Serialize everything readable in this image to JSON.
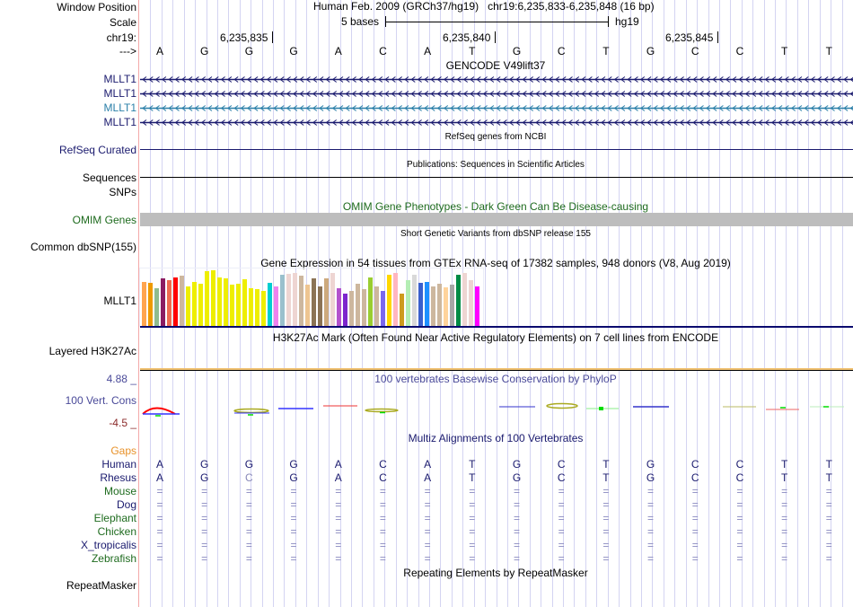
{
  "header": {
    "window_position_label": "Window Position",
    "scale_label": "Scale",
    "chrom_label": "chr19:",
    "strand_label": "--->",
    "assembly_text": "Human Feb. 2009 (GRCh37/hg19)   chr19:6,235,833-6,235,848 (16 bp)",
    "scale_text": "5 bases",
    "scale_db": "hg19",
    "positions": [
      "6,235,835",
      "6,235,840",
      "6,235,845"
    ],
    "sequence": [
      "A",
      "G",
      "G",
      "G",
      "A",
      "C",
      "A",
      "T",
      "G",
      "C",
      "T",
      "G",
      "C",
      "C",
      "T",
      "T"
    ]
  },
  "tracks": {
    "gencode": {
      "title": "GENCODE V49lift37",
      "rows": [
        {
          "label": "MLLT1",
          "color": "#1a1a6e"
        },
        {
          "label": "MLLT1",
          "color": "#1a1a6e"
        },
        {
          "label": "MLLT1",
          "color": "#2a7fa8"
        },
        {
          "label": "MLLT1",
          "color": "#1a1a6e"
        }
      ]
    },
    "refseq": {
      "label": "RefSeq Curated",
      "title": "RefSeq genes from NCBI"
    },
    "publications": {
      "label": "Sequences",
      "title": "Publications: Sequences in Scientific Articles"
    },
    "snps": {
      "label": "SNPs"
    },
    "omim": {
      "label": "OMIM Genes",
      "title": "OMIM Gene Phenotypes - Dark Green Can Be Disease-causing"
    },
    "dbsnp": {
      "label": "Common dbSNP(155)",
      "title": "Short Genetic Variants from dbSNP release 155"
    },
    "gtex": {
      "label": "MLLT1",
      "title": "Gene Expression in 54 tissues from GTEx RNA-seq of 17382 samples, 948 donors (V8, Aug 2019)",
      "bars": [
        {
          "v": 0.8,
          "c": "#FFA54F"
        },
        {
          "v": 0.78,
          "c": "#EE9A00"
        },
        {
          "v": 0.68,
          "c": "#8FBC8F"
        },
        {
          "v": 0.86,
          "c": "#8B1C62"
        },
        {
          "v": 0.82,
          "c": "#EE6A50"
        },
        {
          "v": 0.88,
          "c": "#FF0000"
        },
        {
          "v": 0.9,
          "c": "#CDB79E"
        },
        {
          "v": 0.72,
          "c": "#EEEE00"
        },
        {
          "v": 0.8,
          "c": "#EEEE00"
        },
        {
          "v": 0.76,
          "c": "#EEEE00"
        },
        {
          "v": 0.98,
          "c": "#EEEE00"
        },
        {
          "v": 1.0,
          "c": "#EEEE00"
        },
        {
          "v": 0.88,
          "c": "#EEEE00"
        },
        {
          "v": 0.86,
          "c": "#EEEE00"
        },
        {
          "v": 0.74,
          "c": "#EEEE00"
        },
        {
          "v": 0.76,
          "c": "#EEEE00"
        },
        {
          "v": 0.84,
          "c": "#EEEE00"
        },
        {
          "v": 0.68,
          "c": "#EEEE00"
        },
        {
          "v": 0.66,
          "c": "#EEEE00"
        },
        {
          "v": 0.64,
          "c": "#EEEE00"
        },
        {
          "v": 0.78,
          "c": "#00CED1"
        },
        {
          "v": 0.72,
          "c": "#EE82EE"
        },
        {
          "v": 0.92,
          "c": "#9AC0CD"
        },
        {
          "v": 0.94,
          "c": "#EED5D2"
        },
        {
          "v": 0.96,
          "c": "#EED5D2"
        },
        {
          "v": 0.9,
          "c": "#CDB79E"
        },
        {
          "v": 0.74,
          "c": "#EEC591"
        },
        {
          "v": 0.86,
          "c": "#8B7355"
        },
        {
          "v": 0.72,
          "c": "#8B7355"
        },
        {
          "v": 0.86,
          "c": "#CDAA7D"
        },
        {
          "v": 0.96,
          "c": "#EED5D2"
        },
        {
          "v": 0.68,
          "c": "#B452CD"
        },
        {
          "v": 0.58,
          "c": "#7D26CD"
        },
        {
          "v": 0.64,
          "c": "#CDB79E"
        },
        {
          "v": 0.76,
          "c": "#CDB79E"
        },
        {
          "v": 0.66,
          "c": "#CDB79E"
        },
        {
          "v": 0.88,
          "c": "#9ACD32"
        },
        {
          "v": 0.72,
          "c": "#CDB79E"
        },
        {
          "v": 0.64,
          "c": "#7A67EE"
        },
        {
          "v": 0.92,
          "c": "#FFD700"
        },
        {
          "v": 0.96,
          "c": "#FFB6C1"
        },
        {
          "v": 0.58,
          "c": "#CD9B1D"
        },
        {
          "v": 0.82,
          "c": "#B4EEB4"
        },
        {
          "v": 0.92,
          "c": "#D9D9D9"
        },
        {
          "v": 0.78,
          "c": "#3A5FCD"
        },
        {
          "v": 0.8,
          "c": "#1E90FF"
        },
        {
          "v": 0.72,
          "c": "#CDB79E"
        },
        {
          "v": 0.76,
          "c": "#CDB79E"
        },
        {
          "v": 0.7,
          "c": "#FFD39B"
        },
        {
          "v": 0.74,
          "c": "#A6A6A6"
        },
        {
          "v": 0.92,
          "c": "#008B45"
        },
        {
          "v": 0.96,
          "c": "#EED5D2"
        },
        {
          "v": 0.82,
          "c": "#EED5D2"
        },
        {
          "v": 0.72,
          "c": "#FF00FF"
        }
      ]
    },
    "h3k27ac": {
      "label": "Layered H3K27Ac",
      "title": "H3K27Ac Mark (Often Found Near Active Regulatory Elements) on 7 cell lines from ENCODE"
    },
    "phylop": {
      "label": "100 Vert. Cons",
      "max": "4.88 _",
      "min": "-4.5 _",
      "title": "100 vertebrates Basewise Conservation by PhyloP"
    },
    "multiz": {
      "title": "Multiz Alignments of 100 Vertebrates",
      "gaps_label": "Gaps",
      "species": [
        {
          "name": "Human",
          "cls": "navy",
          "seq": [
            "A",
            "G",
            "G",
            "G",
            "A",
            "C",
            "A",
            "T",
            "G",
            "C",
            "T",
            "G",
            "C",
            "C",
            "T",
            "T"
          ]
        },
        {
          "name": "Rhesus",
          "cls": "navy",
          "seq": [
            "A",
            "G",
            "C",
            "G",
            "A",
            "C",
            "A",
            "T",
            "G",
            "C",
            "T",
            "G",
            "C",
            "C",
            "T",
            "T"
          ]
        },
        {
          "name": "Mouse",
          "cls": "green",
          "seq": "="
        },
        {
          "name": "Dog",
          "cls": "navy",
          "seq": "="
        },
        {
          "name": "Elephant",
          "cls": "green",
          "seq": "="
        },
        {
          "name": "Chicken",
          "cls": "green",
          "seq": "="
        },
        {
          "name": "X_tropicalis",
          "cls": "navy",
          "seq": "="
        },
        {
          "name": "Zebrafish",
          "cls": "green",
          "seq": "="
        }
      ]
    },
    "repeatmasker": {
      "label": "RepeatMasker",
      "title": "Repeating Elements by RepeatMasker"
    }
  }
}
